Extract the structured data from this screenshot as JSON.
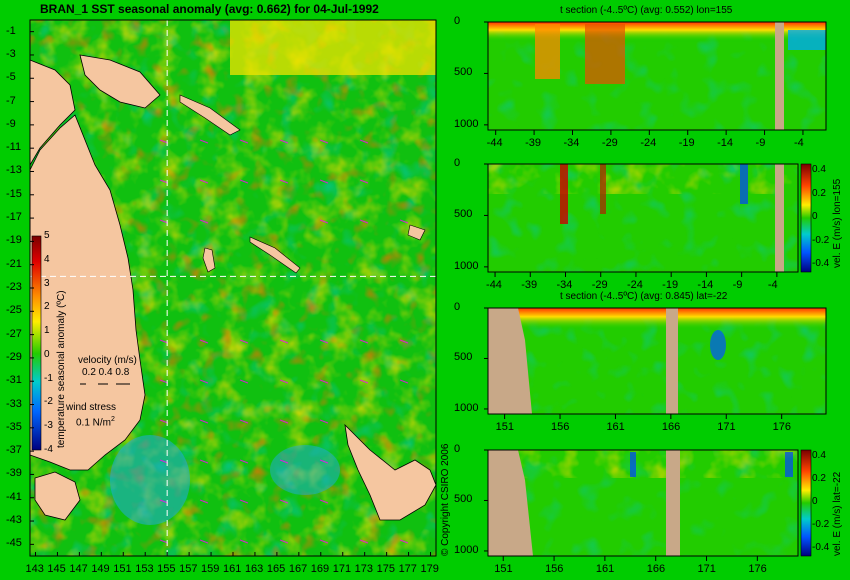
{
  "map": {
    "title": "BRAN_1 SST seasonal anomaly (avg: 0.662) for 04-Jul-1992",
    "lat_ticks": [
      "-1",
      "-3",
      "-5",
      "-7",
      "-9",
      "-11",
      "-13",
      "-15",
      "-17",
      "-19",
      "-21",
      "-23",
      "-25",
      "-27",
      "-29",
      "-31",
      "-33",
      "-35",
      "-37",
      "-39",
      "-41",
      "-43",
      "-45"
    ],
    "lon_ticks": [
      "143",
      "145",
      "147",
      "149",
      "151",
      "153",
      "155",
      "157",
      "159",
      "161",
      "163",
      "165",
      "167",
      "169",
      "171",
      "173",
      "175",
      "177",
      "179"
    ],
    "colorbar": {
      "ticks": [
        "5",
        "4",
        "3",
        "2",
        "1",
        "0",
        "-1",
        "-2",
        "-3",
        "-4"
      ],
      "label": "temperature seasonal anomaly (ºC)"
    },
    "velocity_legend": {
      "title": "velocity (m/s)",
      "values": "0.2 0.4 0.8"
    },
    "wind_legend": {
      "title": "wind stress",
      "value": "0.1 N/m",
      "exp": "2"
    },
    "crosshair": {
      "lon": 155,
      "lat": -22
    }
  },
  "copyright": "© Copyright CSIRO 2006",
  "chart_data": [
    {
      "type": "heatmap",
      "title": "t section (-4..5ºC) (avg: 0.552) lon=155",
      "x_ticks": [
        "-44",
        "-39",
        "-34",
        "-29",
        "-24",
        "-19",
        "-14",
        "-9",
        "-4"
      ],
      "y_ticks": [
        "0",
        "500",
        "1000"
      ],
      "xlim": [
        -45,
        -1
      ],
      "ylim": [
        0,
        1050
      ]
    },
    {
      "type": "heatmap",
      "title": "",
      "x_ticks": [
        "-44",
        "-39",
        "-34",
        "-29",
        "-24",
        "-19",
        "-14",
        "-9",
        "-4"
      ],
      "y_ticks": [
        "0",
        "500",
        "1000"
      ],
      "colorbar_ticks": [
        "0.4",
        "0.2",
        "0",
        "-0.2",
        "-0.4"
      ],
      "colorbar_label": "vel. E (m/s) lon=155",
      "xlim": [
        -45,
        -1
      ],
      "ylim": [
        0,
        1050
      ]
    },
    {
      "type": "heatmap",
      "title": "t section (-4..5ºC) (avg: 0.845) lat=-22",
      "x_ticks": [
        "151",
        "156",
        "161",
        "166",
        "171",
        "176"
      ],
      "y_ticks": [
        "0",
        "500",
        "1000"
      ],
      "xlim": [
        149.5,
        180
      ],
      "ylim": [
        0,
        1050
      ]
    },
    {
      "type": "heatmap",
      "title": "",
      "x_ticks": [
        "151",
        "156",
        "161",
        "166",
        "171",
        "176"
      ],
      "y_ticks": [
        "0",
        "500",
        "1000"
      ],
      "colorbar_ticks": [
        "0.4",
        "0.2",
        "0",
        "-0.2",
        "-0.4"
      ],
      "colorbar_label": "vel. E (m/s) lat=-22",
      "xlim": [
        149.5,
        180
      ],
      "ylim": [
        0,
        1050
      ]
    }
  ]
}
